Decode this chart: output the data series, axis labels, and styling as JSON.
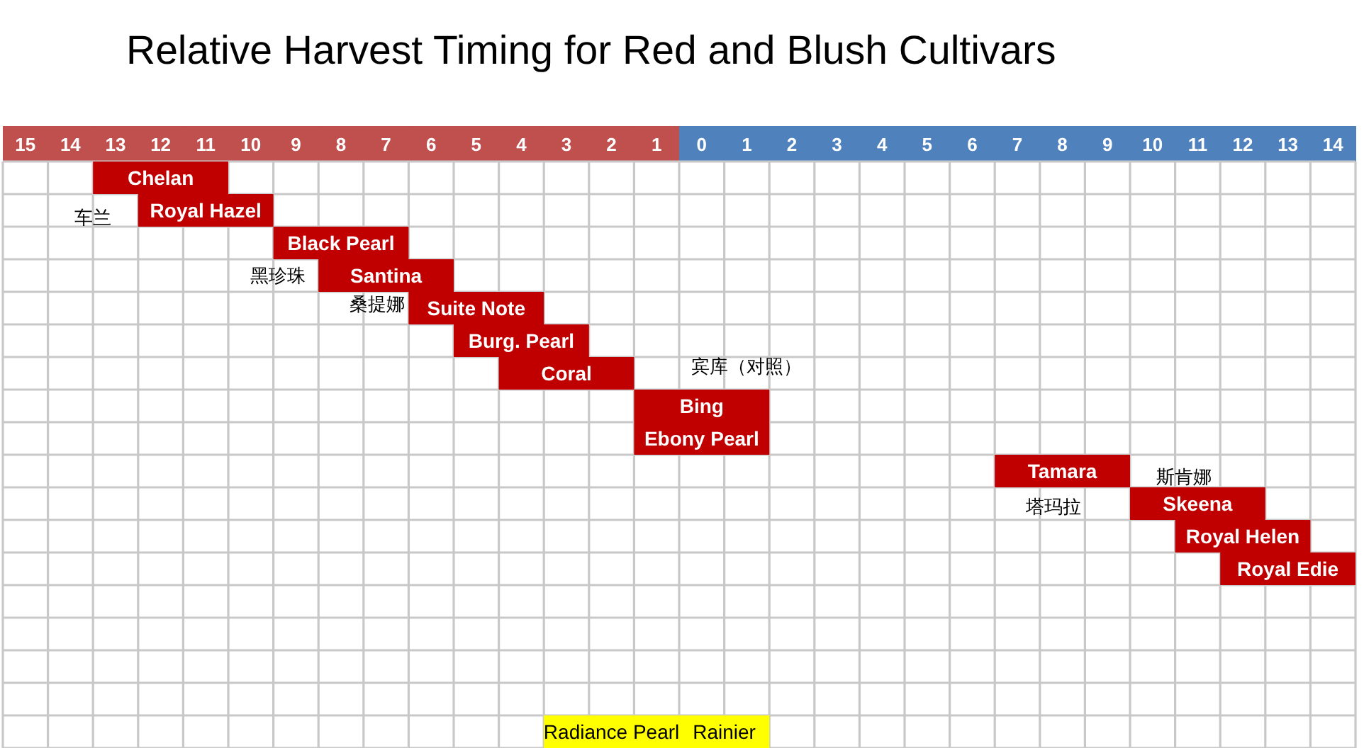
{
  "chart_data": {
    "type": "bar",
    "orientation": "horizontal",
    "title": "Relative Harvest Timing for Red and Blush Cultivars",
    "categories": [
      "Chelan",
      "Royal Hazel",
      "Black Pearl",
      "Santina",
      "Suite Note",
      "Burg. Pearl",
      "Coral",
      "Bing",
      "Ebony Pearl",
      "Tamara",
      "Skeena",
      "Royal Helen",
      "Royal Edie",
      null,
      null,
      null,
      null,
      null
    ],
    "series": [
      {
        "color": "#c00000",
        "values": [
          3,
          3,
          3,
          3,
          3,
          3,
          3,
          3,
          3,
          3,
          3,
          3,
          3,
          null,
          null,
          null,
          null,
          null
        ],
        "base": [
          -13.5,
          -12.5,
          -9.5,
          -8.5,
          -6.5,
          -5.5,
          -4.5,
          -1.5,
          -1.5,
          6.5,
          9.5,
          10.5,
          11.5,
          null,
          null,
          null,
          null,
          null
        ]
      },
      {
        "name": "Radiance Pearl",
        "color": "#ffff00",
        "values": [
          null,
          null,
          null,
          null,
          null,
          null,
          null,
          null,
          null,
          null,
          null,
          null,
          null,
          null,
          null,
          null,
          null,
          3
        ],
        "base": [
          null,
          null,
          null,
          null,
          null,
          null,
          null,
          null,
          null,
          null,
          null,
          null,
          null,
          null,
          null,
          null,
          null,
          -3.5
        ]
      },
      {
        "name": "Rainier",
        "color": "#ffff00",
        "values": [
          null,
          null,
          null,
          null,
          null,
          null,
          null,
          null,
          null,
          null,
          null,
          null,
          null,
          null,
          null,
          null,
          null,
          2
        ],
        "base": [
          null,
          null,
          null,
          null,
          null,
          null,
          null,
          null,
          null,
          null,
          null,
          null,
          null,
          null,
          null,
          null,
          null,
          -0.5
        ]
      }
    ],
    "xlim": [
      -15.5,
      14.5
    ],
    "xticks": [
      {
        "value": -15,
        "label": "15"
      },
      {
        "value": -14,
        "label": "14"
      },
      {
        "value": -13,
        "label": "13"
      },
      {
        "value": -12,
        "label": "12"
      },
      {
        "value": -11,
        "label": "11"
      },
      {
        "value": -10,
        "label": "10"
      },
      {
        "value": -9,
        "label": "9"
      },
      {
        "value": -8,
        "label": "8"
      },
      {
        "value": -7,
        "label": "7"
      },
      {
        "value": -6,
        "label": "6"
      },
      {
        "value": -5,
        "label": "5"
      },
      {
        "value": -4,
        "label": "4"
      },
      {
        "value": -3,
        "label": "3"
      },
      {
        "value": -2,
        "label": "2"
      },
      {
        "value": -1,
        "label": "1"
      },
      0,
      1,
      2,
      3,
      4,
      5,
      6,
      7,
      8,
      9,
      10,
      11,
      12,
      13,
      14
    ],
    "grid": true,
    "annotations": [
      "车兰",
      "黑珍珠",
      "桑提娜",
      "宾库（对照）",
      "斯肯娜",
      "塔玛拉"
    ]
  }
}
